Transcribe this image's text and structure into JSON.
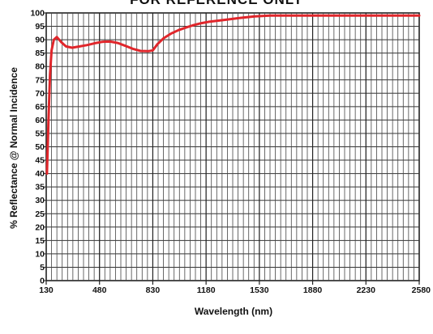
{
  "banner_text": "FOR REFERENCE ONLY",
  "chart_data": {
    "type": "line",
    "xlabel": "Wavelength (nm)",
    "ylabel": "% Reflectance @ Normal Incidence",
    "xlim": [
      130,
      2580
    ],
    "ylim": [
      0,
      100
    ],
    "x_ticks": [
      130,
      480,
      830,
      1180,
      1530,
      1880,
      2230,
      2580
    ],
    "x_tick_labels": [
      "130",
      "480",
      "830",
      "1180",
      "1530",
      "1880",
      "2230",
      "2580"
    ],
    "y_ticks": [
      0,
      5,
      10,
      15,
      20,
      25,
      30,
      35,
      40,
      45,
      50,
      55,
      60,
      65,
      70,
      75,
      80,
      85,
      90,
      95,
      100
    ],
    "y_tick_labels": [
      "0",
      "5",
      "10",
      "15",
      "20",
      "25",
      "30",
      "35",
      "40",
      "45",
      "50",
      "55",
      "60",
      "65",
      "70",
      "75",
      "80",
      "85",
      "90",
      "95",
      "100"
    ],
    "grid": true,
    "series": [
      {
        "color": "#e0262b",
        "x": [
          135,
          145,
          155,
          165,
          180,
          200,
          230,
          260,
          300,
          350,
          400,
          450,
          500,
          550,
          600,
          650,
          700,
          750,
          800,
          830,
          860,
          900,
          950,
          1000,
          1050,
          1100,
          1150,
          1200,
          1300,
          1400,
          1500,
          1600,
          1800,
          2000,
          2200,
          2400,
          2580
        ],
        "y": [
          40,
          60,
          77,
          86,
          90,
          91,
          89,
          87.5,
          87,
          87.5,
          88,
          88.7,
          89.2,
          89.3,
          88.8,
          87.7,
          86.6,
          85.8,
          85.7,
          86,
          88.3,
          90.5,
          92.3,
          93.6,
          94.6,
          95.5,
          96.2,
          96.7,
          97.4,
          98.1,
          98.7,
          99,
          99,
          99,
          99,
          99,
          99
        ]
      }
    ]
  }
}
